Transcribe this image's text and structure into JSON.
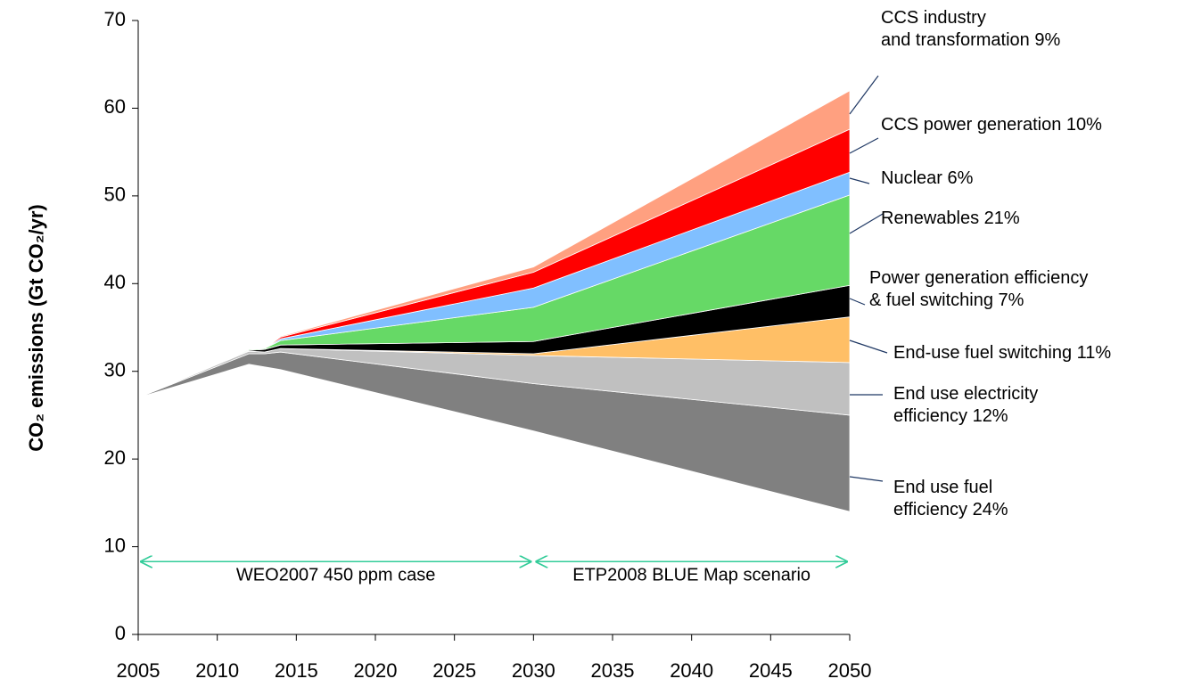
{
  "chart_data": {
    "type": "stacked_area",
    "y_label": "CO₂ emissions (Gt CO₂/yr)",
    "x": [
      2005,
      2012,
      2013,
      2014,
      2030,
      2050
    ],
    "xlim": [
      2005,
      2050
    ],
    "xticks": [
      2005,
      2010,
      2015,
      2020,
      2025,
      2030,
      2035,
      2040,
      2045,
      2050
    ],
    "ylim": [
      0,
      70
    ],
    "yticks": [
      0,
      10,
      20,
      30,
      40,
      50,
      60,
      70
    ],
    "base": [
      27,
      30.8,
      30.5,
      30.2,
      23.2,
      14
    ],
    "series": [
      {
        "name": "End use fuel efficiency 24%",
        "color": "#808080",
        "values": [
          0,
          1.2,
          1.5,
          2.0,
          5.4,
          11
        ]
      },
      {
        "name": "End use electricity efficiency 12%",
        "color": "#c0c0c0",
        "values": [
          0,
          0.3,
          0.2,
          0.4,
          3.2,
          6
        ]
      },
      {
        "name": "End-use fuel switching 11%",
        "color": "#ffbf66",
        "values": [
          0,
          0,
          0,
          0,
          0.2,
          5.2
        ]
      },
      {
        "name": "Power generation efficiency & fuel switching 7%",
        "color": "#000000",
        "values": [
          0,
          0.1,
          0.3,
          0.4,
          1.4,
          3.6
        ]
      },
      {
        "name": "Renewables 21%",
        "color": "#66d966",
        "values": [
          0,
          0.1,
          0.1,
          0.5,
          3.9,
          10.3
        ]
      },
      {
        "name": "Nuclear 6%",
        "color": "#80bfff",
        "values": [
          0,
          0,
          0,
          0.2,
          2.2,
          2.6
        ]
      },
      {
        "name": "CCS power generation 10%",
        "color": "#ff0000",
        "values": [
          0,
          0,
          0,
          0.2,
          1.8,
          4.9
        ]
      },
      {
        "name": "CCS industry and transformation 9%",
        "color": "#ffa080",
        "values": [
          0,
          0,
          0,
          0.1,
          0.6,
          4.4
        ]
      }
    ],
    "annotations": [
      {
        "text": "WEO2007 450 ppm case",
        "x": [
          2005,
          2030
        ],
        "y": 8.3
      },
      {
        "text": "ETP2008 BLUE Map scenario",
        "x": [
          2030,
          2050
        ],
        "y": 8.3
      }
    ]
  }
}
